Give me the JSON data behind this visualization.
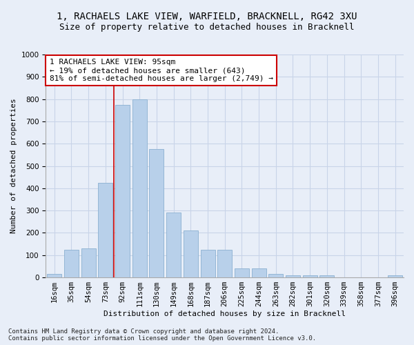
{
  "title": "1, RACHAELS LAKE VIEW, WARFIELD, BRACKNELL, RG42 3XU",
  "subtitle": "Size of property relative to detached houses in Bracknell",
  "xlabel": "Distribution of detached houses by size in Bracknell",
  "ylabel": "Number of detached properties",
  "categories": [
    "16sqm",
    "35sqm",
    "54sqm",
    "73sqm",
    "92sqm",
    "111sqm",
    "130sqm",
    "149sqm",
    "168sqm",
    "187sqm",
    "206sqm",
    "225sqm",
    "244sqm",
    "263sqm",
    "282sqm",
    "301sqm",
    "320sqm",
    "339sqm",
    "358sqm",
    "377sqm",
    "396sqm"
  ],
  "values": [
    15,
    125,
    130,
    425,
    775,
    800,
    575,
    290,
    210,
    125,
    125,
    40,
    40,
    15,
    10,
    10,
    10,
    0,
    0,
    0,
    10
  ],
  "bar_color": "#b8d0ea",
  "bar_edge_color": "#8ab0d0",
  "grid_color": "#c8d4e8",
  "background_color": "#e8eef8",
  "annotation_text": "1 RACHAELS LAKE VIEW: 95sqm\n← 19% of detached houses are smaller (643)\n81% of semi-detached houses are larger (2,749) →",
  "annotation_box_color": "#ffffff",
  "annotation_box_edge": "#cc0000",
  "vline_color": "#cc0000",
  "ylim": [
    0,
    1000
  ],
  "yticks": [
    0,
    100,
    200,
    300,
    400,
    500,
    600,
    700,
    800,
    900,
    1000
  ],
  "footer": "Contains HM Land Registry data © Crown copyright and database right 2024.\nContains public sector information licensed under the Open Government Licence v3.0.",
  "title_fontsize": 10,
  "subtitle_fontsize": 9,
  "axis_label_fontsize": 8,
  "tick_fontsize": 7.5,
  "annotation_fontsize": 8,
  "footer_fontsize": 6.5
}
